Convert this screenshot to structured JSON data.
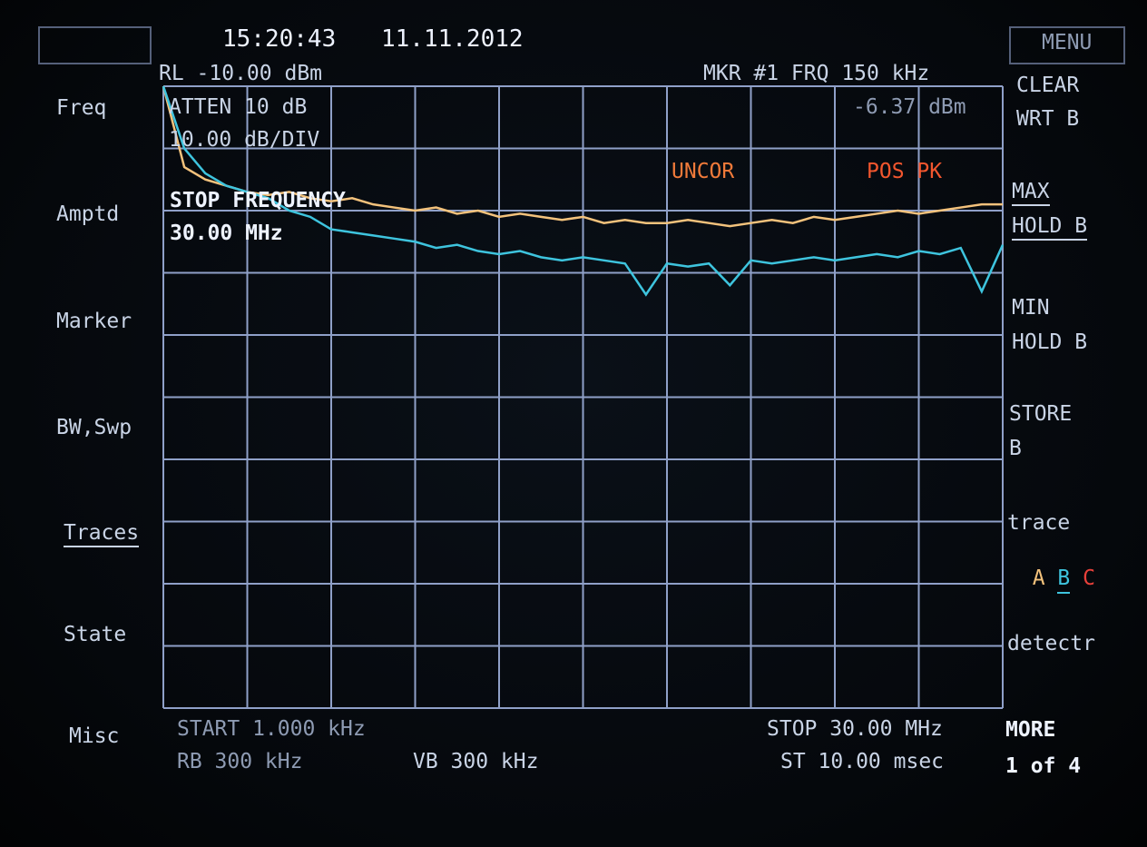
{
  "header": {
    "clock": "15:20:43",
    "date": "11.11.2012",
    "ref_level": "RL -10.00 dBm",
    "atten": "ATTEN 10 dB",
    "scale": "10.00 dB/DIV",
    "marker": "MKR #1 FRQ 150 kHz",
    "marker_value": "-6.37 dBm",
    "uncor": "UNCOR",
    "detector": "POS PK",
    "entry_title": "STOP FREQUENCY",
    "entry_value": "30.00 MHz"
  },
  "footer": {
    "start": "START 1.000 kHz",
    "rbw": "RB 300 kHz",
    "vbw": "VB 300 kHz",
    "stop": "STOP 30.00 MHz",
    "sweep": "ST 10.00 msec"
  },
  "softkeys_left": [
    "Freq",
    "Amptd",
    "Marker",
    "BW,Swp",
    "Traces",
    "State",
    "Misc"
  ],
  "softkeys_right": {
    "menu": "MENU",
    "clear_1": "CLEAR",
    "clear_2": "WRT B",
    "max_1": "MAX",
    "max_2": "HOLD B",
    "min_1": "MIN",
    "min_2": "HOLD B",
    "store_1": "STORE",
    "store_2": "B",
    "trace": "trace",
    "trace_c": "C",
    "detectr": "detectr",
    "more_1": "MORE",
    "more_2": "1 of 4"
  },
  "chart_data": {
    "type": "line",
    "xlim": [
      0.001,
      30
    ],
    "ylim": [
      -110,
      -10
    ],
    "x": [
      0.001,
      0.75,
      1.5,
      2.25,
      3,
      3.75,
      4.5,
      5.25,
      6,
      6.75,
      7.5,
      8.25,
      9,
      9.75,
      10.5,
      11.25,
      12,
      12.75,
      13.5,
      14.25,
      15,
      15.75,
      16.5,
      17.25,
      18,
      18.75,
      19.5,
      20.25,
      21,
      21.75,
      22.5,
      23.25,
      24,
      24.75,
      25.5,
      26.25,
      27,
      27.75,
      28.5,
      29.25,
      30
    ],
    "series": [
      {
        "name": "A",
        "color": "#f3c27c",
        "values": [
          -10,
          -23,
          -25,
          -26,
          -27,
          -27.5,
          -27,
          -28,
          -28.5,
          -28,
          -29,
          -29.5,
          -30,
          -29.5,
          -30.5,
          -30,
          -31,
          -30.5,
          -31,
          -31.5,
          -31,
          -32,
          -31.5,
          -32,
          -32,
          -31.5,
          -32,
          -32.5,
          -32,
          -31.5,
          -32,
          -31,
          -31.5,
          -31,
          -30.5,
          -30,
          -30.5,
          -30,
          -29.5,
          -29,
          -29
        ]
      },
      {
        "name": "B",
        "color": "#3ec4de",
        "values": [
          -10,
          -20,
          -24,
          -26,
          -27,
          -28,
          -30,
          -31,
          -33,
          -33.5,
          -34,
          -34.5,
          -35,
          -36,
          -35.5,
          -36.5,
          -37,
          -36.5,
          -37.5,
          -38,
          -37.5,
          -38,
          -38.5,
          -43.5,
          -38.5,
          -39,
          -38.5,
          -42,
          -38,
          -38.5,
          -38,
          -37.5,
          -38,
          -37.5,
          -37,
          -37.5,
          -36.5,
          -37,
          -36,
          -43,
          -35.5
        ]
      }
    ]
  }
}
